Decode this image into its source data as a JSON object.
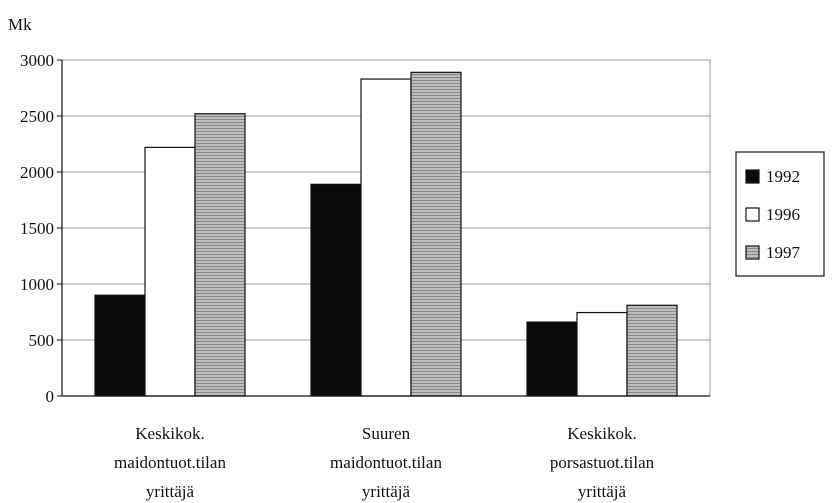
{
  "chart_data": {
    "type": "bar",
    "ylabel": "Mk",
    "ylim": [
      0,
      3000
    ],
    "yticks": [
      0,
      500,
      1000,
      1500,
      2000,
      2500,
      3000
    ],
    "grid": true,
    "legend_position": "right",
    "categories": [
      [
        "Keskikok.",
        "maidontuot.tilan",
        "yrittäjä"
      ],
      [
        "Suuren",
        "maidontuot.tilan",
        "yrittäjä"
      ],
      [
        "Keskikok.",
        "porsastuot.tilan",
        "yrittäjä"
      ]
    ],
    "series": [
      {
        "name": "1992",
        "values": [
          900,
          1890,
          660
        ],
        "color": "#0a0a0a"
      },
      {
        "name": "1996",
        "values": [
          2220,
          2830,
          745
        ],
        "color": "#ffffff"
      },
      {
        "name": "1997",
        "values": [
          2520,
          2890,
          810
        ],
        "color": "#a9a9a9"
      }
    ]
  }
}
